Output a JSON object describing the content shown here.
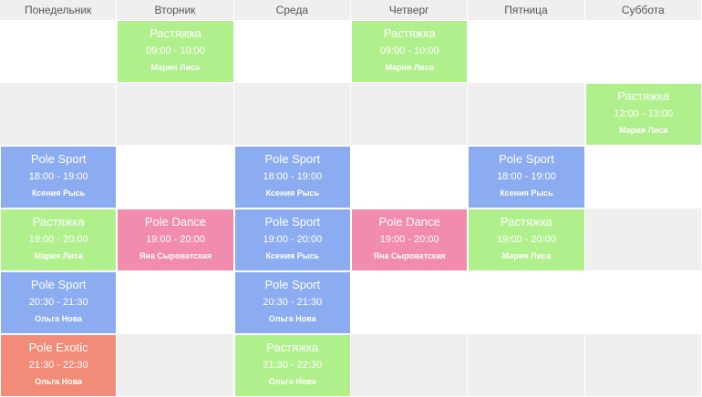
{
  "colors": {
    "stretch": "#b0f08c",
    "sport": "#8cacf2",
    "dance": "#f28cae",
    "exotic": "#f28c78",
    "header_bg": "#efefef",
    "row_alt": "#efefef"
  },
  "days": [
    "Понедельник",
    "Вторник",
    "Среда",
    "Четверг",
    "Пятница",
    "Суббота"
  ],
  "rows": [
    [
      null,
      {
        "title": "Растяжка",
        "time": "09:00 - 10:00",
        "trainer": "Мария Лиса",
        "type": "stretch"
      },
      null,
      {
        "title": "Растяжка",
        "time": "09:00 - 10:00",
        "trainer": "Мария Лиса",
        "type": "stretch"
      },
      null,
      null
    ],
    [
      null,
      null,
      null,
      null,
      null,
      {
        "title": "Растяжка",
        "time": "12:00 - 13:00",
        "trainer": "Мария Лиса",
        "type": "stretch"
      }
    ],
    [
      {
        "title": "Pole Sport",
        "time": "18:00 - 19:00",
        "trainer": "Ксения Рысь",
        "type": "sport"
      },
      null,
      {
        "title": "Pole Sport",
        "time": "18:00 - 19:00",
        "trainer": "Ксения Рысь",
        "type": "sport"
      },
      null,
      {
        "title": "Pole Sport",
        "time": "18:00 - 19:00",
        "trainer": "Ксения Рысь",
        "type": "sport"
      },
      null
    ],
    [
      {
        "title": "Растяжка",
        "time": "19:00 - 20:00",
        "trainer": "Мария Лиса",
        "type": "stretch"
      },
      {
        "title": "Pole Dance",
        "time": "19:00 - 20:00",
        "trainer": "Яна Сыроватская",
        "type": "dance"
      },
      {
        "title": "Pole Sport",
        "time": "19:00 - 20:00",
        "trainer": "Ксения Рысь",
        "type": "sport"
      },
      {
        "title": "Pole Dance",
        "time": "19:00 - 20:00",
        "trainer": "Яна Сыроватская",
        "type": "dance"
      },
      {
        "title": "Растяжка",
        "time": "19:00 - 20:00",
        "trainer": "Мария Лиса",
        "type": "stretch"
      },
      null
    ],
    [
      {
        "title": "Pole Sport",
        "time": "20:30 - 21:30",
        "trainer": "Ольга Нова",
        "type": "sport"
      },
      null,
      {
        "title": "Pole Sport",
        "time": "20:30 - 21:30",
        "trainer": "Ольга Нова",
        "type": "sport"
      },
      null,
      null,
      null
    ],
    [
      {
        "title": "Pole Exotic",
        "time": "21:30 - 22:30",
        "trainer": "Ольга Нова",
        "type": "exotic"
      },
      null,
      {
        "title": "Растяжка",
        "time": "21:30 - 22:30",
        "trainer": "Ольга Нова",
        "type": "stretch"
      },
      null,
      null,
      null
    ]
  ]
}
